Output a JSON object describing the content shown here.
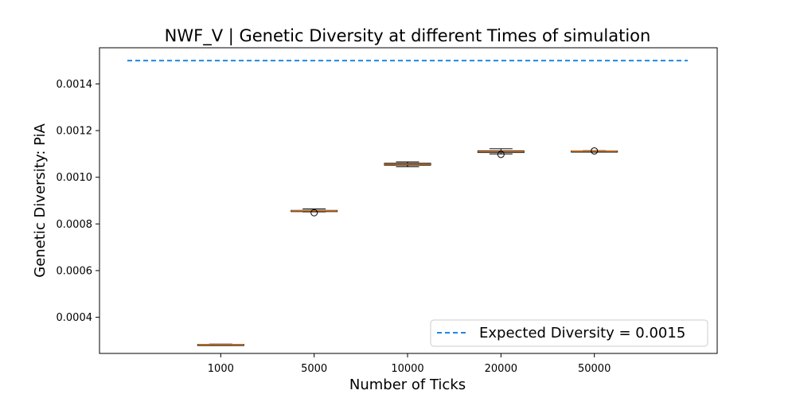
{
  "chart_data": {
    "type": "box",
    "title": "NWF_V | Genetic Diversity at different Times of simulation",
    "xlabel": "Number of Ticks",
    "ylabel": "Genetic Diversity: PiA",
    "categories": [
      "1000",
      "5000",
      "10000",
      "20000",
      "50000"
    ],
    "ylim": [
      0.000245,
      0.001555
    ],
    "yticks": [
      0.0004,
      0.0006,
      0.0008,
      0.001,
      0.0012,
      0.0014
    ],
    "ytick_labels": [
      "0.0004",
      "0.0006",
      "0.0008",
      "0.0010",
      "0.0012",
      "0.0014"
    ],
    "boxes": [
      {
        "category": "1000",
        "whisker_low": 0.000281,
        "q1": 0.000282,
        "median": 0.000283,
        "q3": 0.000284,
        "whisker_high": 0.000285,
        "outliers": []
      },
      {
        "category": "5000",
        "whisker_low": 0.000852,
        "q1": 0.000854,
        "median": 0.000856,
        "q3": 0.000858,
        "whisker_high": 0.000864,
        "outliers": [
          0.000848
        ]
      },
      {
        "category": "10000",
        "whisker_low": 0.001045,
        "q1": 0.001052,
        "median": 0.001056,
        "q3": 0.00106,
        "whisker_high": 0.001066,
        "outliers": []
      },
      {
        "category": "20000",
        "whisker_low": 0.0011,
        "q1": 0.001106,
        "median": 0.00111,
        "q3": 0.001113,
        "whisker_high": 0.001122,
        "outliers": [
          0.001098
        ]
      },
      {
        "category": "50000",
        "whisker_low": 0.001108,
        "q1": 0.00111,
        "median": 0.001112,
        "q3": 0.001113,
        "whisker_high": 0.001114,
        "outliers": [
          0.001113
        ]
      }
    ],
    "reference_line": {
      "value": 0.0015,
      "label": "Expected Diversity = 0.0015",
      "style": "dashed",
      "color": "#1e88e5"
    },
    "legend_placement": "lower-right",
    "grid": false,
    "colors": {
      "box": "#000000",
      "median": "#e07b24",
      "reference": "#1e88e5"
    }
  }
}
